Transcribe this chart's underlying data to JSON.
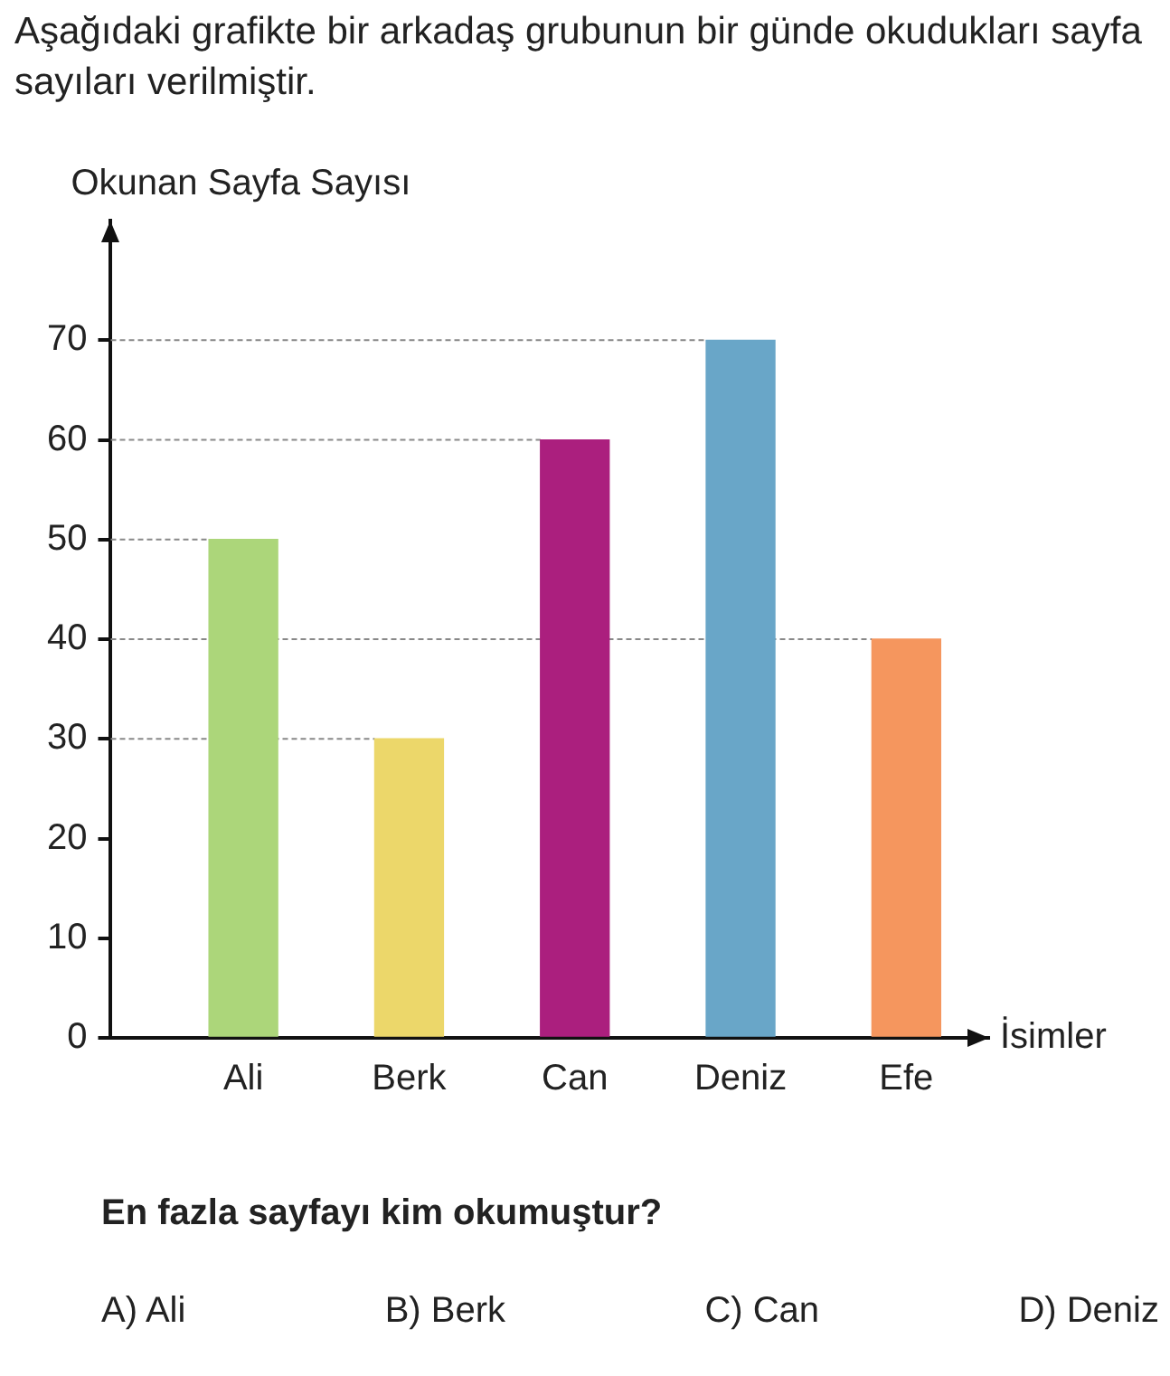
{
  "chart_data": {
    "type": "bar",
    "title": "Aşağıdaki grafikte bir arkadaş grubunun bir günde okudukları sayfa sayıları verilmiştir.",
    "xlabel": "İsimler",
    "ylabel": "Okunan Sayfa Sayısı",
    "categories": [
      "Ali",
      "Berk",
      "Can",
      "Deniz",
      "Efe"
    ],
    "values": [
      50,
      30,
      60,
      70,
      40
    ],
    "colors": [
      "#acd67a",
      "#ecd76a",
      "#ab1f7e",
      "#69a6c8",
      "#f5965e"
    ],
    "ref_lines": [
      {
        "axis": "y",
        "value": 70,
        "color": "#888888",
        "line_style": "dashed"
      },
      {
        "axis": "y",
        "value": 60,
        "color": "#888888",
        "line_style": "dashed"
      },
      {
        "axis": "y",
        "value": 50,
        "color": "#888888",
        "line_style": "dashed"
      },
      {
        "axis": "y",
        "value": 40,
        "color": "#888888",
        "line_style": "dashed"
      },
      {
        "axis": "y",
        "value": 30,
        "color": "#888888",
        "line_style": "dashed"
      }
    ],
    "ylim": [
      0,
      82
    ],
    "yticks": [
      0,
      10,
      20,
      30,
      40,
      50,
      60,
      70
    ],
    "legend": false,
    "annotations": [
      "En fazla sayfayı kim okumuştur?",
      "A) Ali",
      "B) Berk",
      "C) Can",
      "D) Deniz"
    ]
  }
}
